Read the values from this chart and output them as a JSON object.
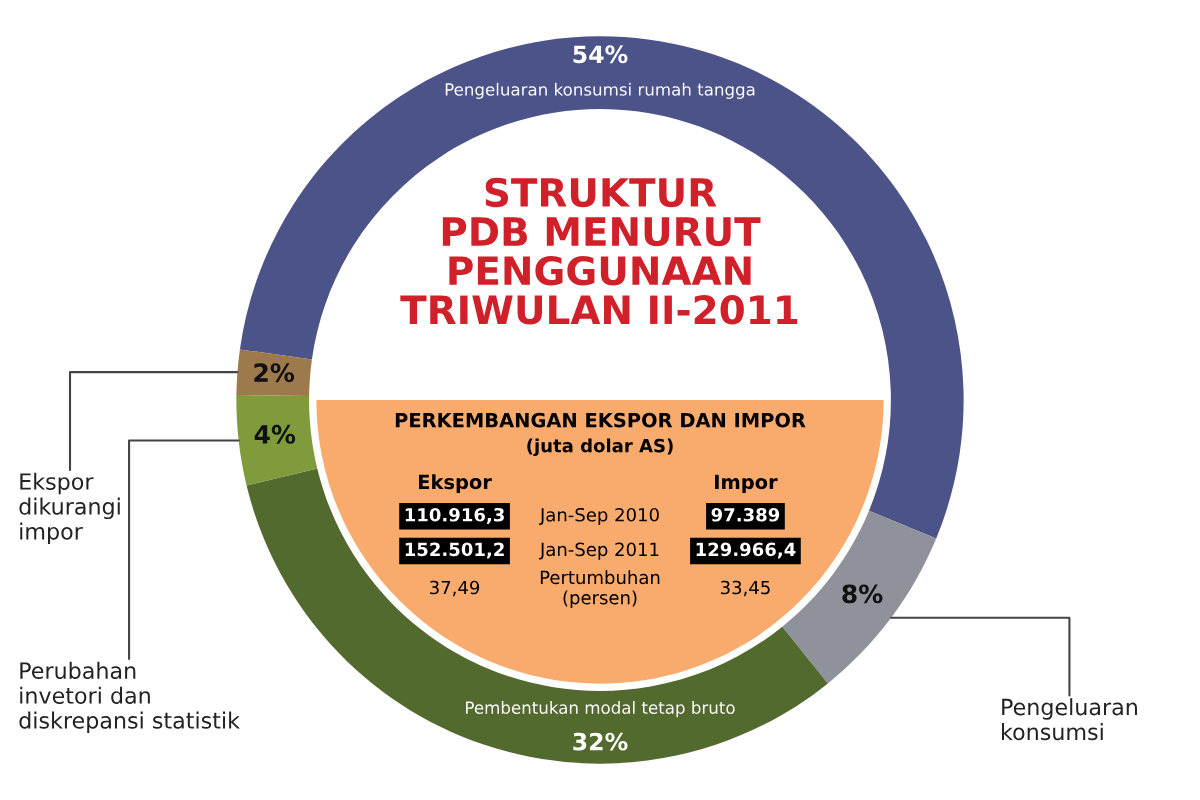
{
  "chart_data": [
    {
      "type": "donut",
      "title": "STRUKTUR\nPDB MENURUT\nPENGGUNAAN\nTRIWULAN II-2011",
      "categories": [
        "Pengeluaran konsumsi rumah tangga",
        "Pengeluaran\nkonsumsi",
        "Pembentukan modal tetap bruto",
        "Perubahan\ninvetori dan\ndiskrepansi statistik",
        "Ekspor\ndikurangi\nimpor"
      ],
      "values": [
        54,
        8,
        32,
        4,
        2
      ],
      "value_labels": [
        "54%",
        "8%",
        "32%",
        "4%",
        "2%"
      ],
      "colors": [
        "#4b5388",
        "#8f929b",
        "#536a2f",
        "#7f9b3b",
        "#9c7a4c"
      ]
    },
    {
      "type": "other",
      "title": "PERKEMBANGAN EKSPOR DAN IMPOR",
      "subtitle": "(juta dolar AS)",
      "annotations": [
        "Ekspor",
        "Impor",
        "110.916,3",
        "Jan-Sep 2010",
        "97.389",
        "152.501,2",
        "Jan-Sep 2011",
        "129.966,4",
        "37,49",
        "Pertumbuhan\n(persen)",
        "33,45"
      ]
    }
  ]
}
